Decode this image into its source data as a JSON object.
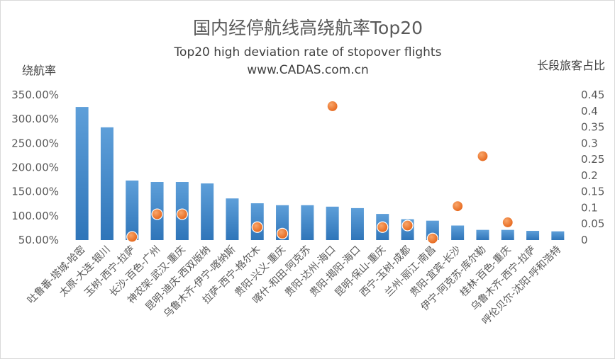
{
  "chart_data": {
    "type": "bar",
    "title": "国内经停航线高绕航率Top20",
    "subtitle": "Top20 high deviation rate of stopover flights",
    "source": "www.CADAS.com.cn",
    "ylabel": "绕航率",
    "y2label": "长段旅客占比",
    "ylim": [
      50,
      350
    ],
    "y2lim": [
      0,
      0.45
    ],
    "yticks": [
      "350.00%",
      "300.00%",
      "250.00%",
      "200.00%",
      "150.00%",
      "100.00%",
      "50.00%"
    ],
    "y2ticks": [
      "0.45",
      "0.4",
      "0.35",
      "0.3",
      "0.25",
      "0.2",
      "0.15",
      "0.1",
      "0.05",
      "0"
    ],
    "categories": [
      "吐鲁番-塔城-哈密",
      "太原-大连-银川",
      "玉树-西宁-拉萨",
      "长沙-百色-广州",
      "神农架-武汉-重庆",
      "昆明-迪庆-西双版纳",
      "乌鲁木齐-伊宁-喀纳斯",
      "拉萨-西宁-格尔木",
      "贵阳-兴义-重庆",
      "喀什-和田-阿克苏",
      "贵阳-达州-海口",
      "贵阳-揭阳-海口",
      "昆明-保山-重庆",
      "西宁-玉树-成都",
      "兰州-丽江-南昌",
      "贵阳-宜宾-长沙",
      "伊宁-阿克苏-库尔勒",
      "桂林-百色-重庆",
      "乌鲁木齐-西宁-拉萨",
      "呼伦贝尔-沈阳-呼和浩特"
    ],
    "series": [
      {
        "name": "绕航率",
        "type": "bar",
        "axis": "left",
        "color": "#5b9bd5",
        "values": [
          325,
          283,
          173,
          170,
          170,
          167,
          136,
          126,
          122,
          122,
          119,
          116,
          104,
          93,
          90,
          80,
          71,
          71,
          69,
          68
        ]
      },
      {
        "name": "长段旅客占比",
        "type": "scatter",
        "axis": "right",
        "color": "#ed7d31",
        "values": [
          null,
          null,
          0.01,
          0.08,
          0.08,
          null,
          null,
          0.04,
          0.02,
          null,
          0.415,
          null,
          0.04,
          0.045,
          0.005,
          0.105,
          0.26,
          0.055,
          null,
          null
        ]
      }
    ],
    "grid": false
  }
}
